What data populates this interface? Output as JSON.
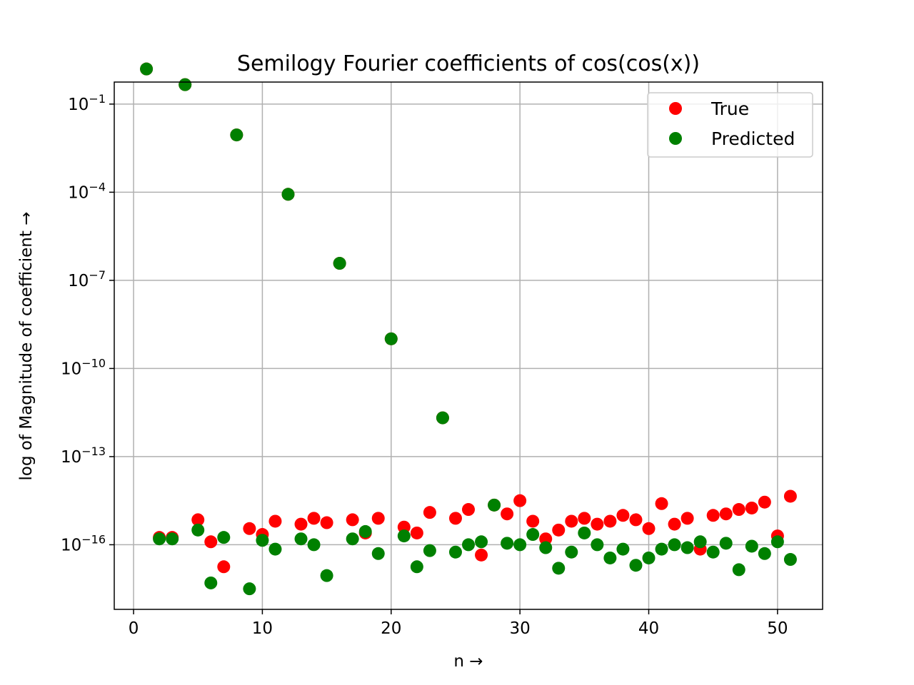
{
  "chart_data": {
    "type": "scatter",
    "title": "Semilogy Fourier coefficients of cos(cos(x))",
    "xlabel": "n →",
    "ylabel": "log of Magnitude of coefficient  →",
    "y_scale": "log",
    "grid": true,
    "legend_position": "top-right",
    "xlim": [
      -1.5,
      53.5
    ],
    "ylim_log10": [
      -18.2,
      -0.25
    ],
    "x_ticks": [
      0,
      10,
      20,
      30,
      40,
      50
    ],
    "y_ticks": [
      {
        "exp": -1,
        "base": "10",
        "label": "−1"
      },
      {
        "exp": -4,
        "base": "10",
        "label": "−4"
      },
      {
        "exp": -7,
        "base": "10",
        "label": "−7"
      },
      {
        "exp": -10,
        "base": "10",
        "label": "−10"
      },
      {
        "exp": -13,
        "base": "10",
        "label": "−13"
      },
      {
        "exp": -16,
        "base": "10",
        "label": "−16"
      }
    ],
    "series": [
      {
        "name": "True",
        "color": "#ff0000",
        "x": [
          1,
          2,
          3,
          4,
          5,
          6,
          7,
          8,
          9,
          10,
          11,
          12,
          13,
          14,
          15,
          16,
          17,
          18,
          19,
          20,
          21,
          22,
          23,
          24,
          25,
          26,
          27,
          28,
          29,
          30,
          31,
          32,
          33,
          34,
          35,
          36,
          37,
          38,
          39,
          40,
          41,
          42,
          43,
          44,
          45,
          46,
          47,
          48,
          49,
          50,
          51
        ],
        "log10y": [
          0.196,
          -15.75,
          -15.75,
          -0.338,
          -15.15,
          -15.9,
          -16.75,
          -2.05,
          -15.45,
          -15.65,
          -15.2,
          -4.07,
          -15.3,
          -15.1,
          -15.25,
          -6.42,
          -15.15,
          -15.6,
          -15.1,
          -8.99,
          -15.4,
          -15.6,
          -14.9,
          -11.68,
          -15.1,
          -14.8,
          -16.35,
          -14.65,
          -14.95,
          -14.5,
          -15.2,
          -15.8,
          -15.5,
          -15.2,
          -15.1,
          -15.3,
          -15.2,
          -15.0,
          -15.15,
          -15.45,
          -14.6,
          -15.3,
          -15.1,
          -16.15,
          -15.0,
          -14.95,
          -14.8,
          -14.75,
          -14.55,
          -15.7,
          -14.35
        ]
      },
      {
        "name": "Predicted",
        "color": "#008000",
        "x": [
          1,
          2,
          3,
          4,
          5,
          6,
          7,
          8,
          9,
          10,
          11,
          12,
          13,
          14,
          15,
          16,
          17,
          18,
          19,
          20,
          21,
          22,
          23,
          24,
          25,
          26,
          27,
          28,
          29,
          30,
          31,
          32,
          33,
          34,
          35,
          36,
          37,
          38,
          39,
          40,
          41,
          42,
          43,
          44,
          45,
          46,
          47,
          48,
          49,
          50,
          51
        ],
        "log10y": [
          0.196,
          -15.8,
          -15.8,
          -0.338,
          -15.5,
          -17.3,
          -15.75,
          -2.05,
          -17.5,
          -15.85,
          -16.15,
          -4.07,
          -15.8,
          -16.0,
          -17.05,
          -6.42,
          -15.8,
          -15.55,
          -16.3,
          -8.99,
          -15.7,
          -16.75,
          -16.2,
          -11.68,
          -16.25,
          -16.0,
          -15.9,
          -14.65,
          -15.95,
          -16.0,
          -15.65,
          -16.1,
          -16.8,
          -16.25,
          -15.6,
          -16.0,
          -16.45,
          -16.15,
          -16.7,
          -16.45,
          -16.15,
          -16.0,
          -16.1,
          -15.9,
          -16.25,
          -15.95,
          -16.85,
          -16.05,
          -16.3,
          -15.9,
          -16.5
        ]
      }
    ]
  }
}
